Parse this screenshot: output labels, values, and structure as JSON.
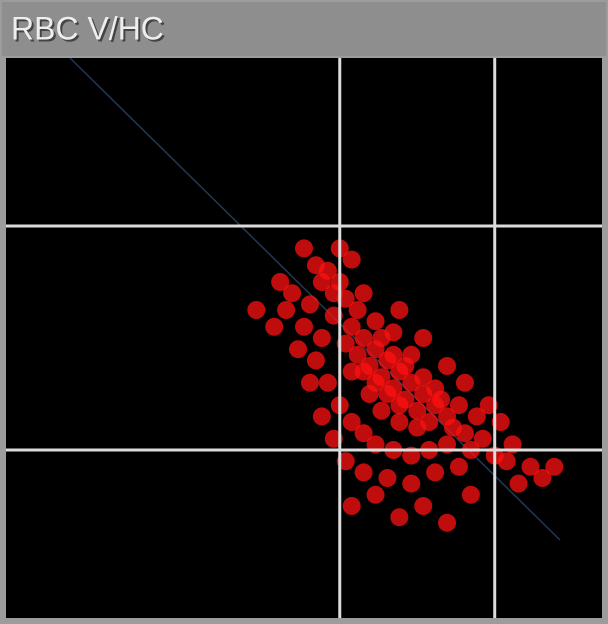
{
  "chart_data": {
    "type": "scatter",
    "title": "RBC V/HC",
    "color": "#ff1010",
    "xlim": [
      0,
      100
    ],
    "ylim": [
      0,
      100
    ],
    "x_gates": [
      56,
      82
    ],
    "y_gates": [
      30,
      70
    ],
    "x": [
      60,
      62,
      64,
      66,
      68,
      70,
      58,
      61,
      63,
      65,
      67,
      69,
      72,
      74,
      59,
      62,
      64,
      66,
      60,
      63,
      65,
      67,
      70,
      72,
      57,
      58,
      61,
      63,
      66,
      69,
      71,
      75,
      77,
      73,
      68,
      65,
      62,
      59,
      57,
      60,
      56,
      54,
      52,
      55,
      53,
      52,
      54,
      56,
      58,
      60,
      62,
      65,
      68,
      71,
      74,
      78,
      80,
      82,
      84,
      79,
      76,
      58,
      55,
      51,
      50,
      49,
      51,
      53,
      55,
      57,
      60,
      64,
      68,
      72,
      76,
      85,
      88,
      90,
      86,
      62,
      58,
      70,
      78,
      48,
      47,
      46,
      45,
      50,
      56,
      53,
      42,
      66,
      70,
      74,
      77,
      81,
      83,
      92,
      66,
      74
    ],
    "y": [
      50,
      48,
      46,
      44,
      42,
      40,
      52,
      45,
      43,
      41,
      39,
      37,
      38,
      36,
      47,
      42,
      40,
      38,
      44,
      50,
      47,
      45,
      43,
      41,
      49,
      44,
      40,
      37,
      35,
      34,
      35,
      34,
      33,
      39,
      47,
      51,
      53,
      55,
      57,
      58,
      60,
      62,
      63,
      54,
      50,
      46,
      42,
      38,
      35,
      33,
      31,
      30,
      29,
      30,
      31,
      30,
      32,
      29,
      28,
      36,
      38,
      64,
      58,
      56,
      52,
      48,
      42,
      36,
      32,
      28,
      26,
      25,
      24,
      26,
      27,
      31,
      27,
      25,
      24,
      22,
      20,
      20,
      22,
      58,
      55,
      60,
      52,
      66,
      66,
      60,
      55,
      55,
      50,
      45,
      42,
      38,
      35,
      27,
      18,
      17
    ]
  }
}
